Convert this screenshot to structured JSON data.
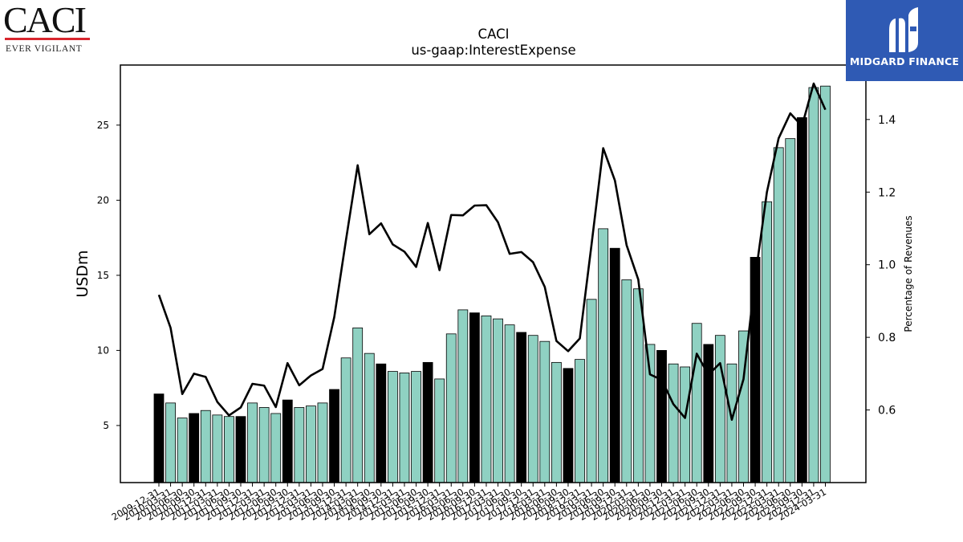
{
  "logos": {
    "caci": {
      "name": "CACI",
      "tagline": "EVER VIGILANT"
    },
    "midgard": {
      "name": "MIDGARD FINANCE"
    }
  },
  "colors": {
    "bar_default": "#8fd1c2",
    "bar_highlight": "#000000",
    "line": "#000000",
    "midgard_bg": "#2f5ab4",
    "caci_red": "#d8262e"
  },
  "chart_data": {
    "type": "bar",
    "title": "CACI",
    "subtitle": "us-gaap:InterestExpense",
    "ylabel": "USDm",
    "y2label": "Percentage of Revenues",
    "ylim": [
      1.2,
      29
    ],
    "y2lim": [
      0.4,
      1.55
    ],
    "yticks": [
      5,
      10,
      15,
      20,
      25
    ],
    "y2ticks": [
      0.6,
      0.8,
      1.0,
      1.2,
      1.4
    ],
    "categories": [
      "2009-12-31",
      "2010-03-31",
      "2010-06-30",
      "2010-09-30",
      "2010-12-31",
      "2011-03-31",
      "2011-06-30",
      "2011-09-30",
      "2011-12-31",
      "2012-03-31",
      "2012-06-30",
      "2012-09-30",
      "2012-12-31",
      "2013-03-31",
      "2013-06-30",
      "2013-09-30",
      "2013-12-31",
      "2014-03-31",
      "2014-06-30",
      "2014-09-30",
      "2014-12-31",
      "2015-03-31",
      "2015-06-30",
      "2015-09-30",
      "2015-12-31",
      "2016-03-31",
      "2016-06-30",
      "2016-09-30",
      "2016-12-31",
      "2017-03-31",
      "2017-06-30",
      "2017-09-30",
      "2017-12-31",
      "2018-03-31",
      "2018-06-30",
      "2018-09-30",
      "2018-12-31",
      "2019-03-31",
      "2019-06-30",
      "2019-09-30",
      "2019-12-31",
      "2020-03-31",
      "2020-06-30",
      "2020-09-30",
      "2020-12-31",
      "2021-03-31",
      "2021-06-30",
      "2021-09-30",
      "2021-12-31",
      "2022-03-31",
      "2022-06-30",
      "2022-09-30",
      "2022-12-31",
      "2023-03-31",
      "2023-06-30",
      "2023-09-30",
      "2023-12-31",
      "2024-03-31"
    ],
    "series": [
      {
        "values": [
          7.1,
          6.5,
          5.5,
          5.8,
          6.0,
          5.7,
          5.6,
          5.6,
          6.5,
          6.2,
          5.8,
          6.7,
          6.2,
          6.3,
          6.5,
          7.4,
          9.5,
          11.5,
          9.8,
          9.1,
          8.6,
          8.5,
          8.6,
          9.2,
          8.1,
          11.1,
          12.7,
          12.5,
          12.3,
          12.1,
          11.7,
          11.2,
          11.0,
          10.6,
          9.2,
          8.8,
          9.4,
          13.4,
          18.1,
          16.8,
          14.7,
          14.1,
          10.4,
          10.0,
          9.1,
          8.9,
          11.8,
          10.4,
          11.0,
          9.1,
          11.3,
          16.2,
          19.9,
          23.5,
          24.1,
          25.5,
          27.5,
          27.6
        ]
      },
      {
        "values": [
          0.917,
          0.826,
          0.644,
          0.7,
          0.691,
          0.622,
          0.585,
          0.607,
          0.672,
          0.667,
          0.608,
          0.729,
          0.668,
          0.695,
          0.713,
          0.856,
          1.068,
          1.274,
          1.084,
          1.114,
          1.056,
          1.036,
          0.994,
          1.115,
          0.985,
          1.137,
          1.136,
          1.163,
          1.164,
          1.117,
          1.03,
          1.035,
          1.007,
          0.939,
          0.79,
          0.762,
          0.797,
          1.055,
          1.321,
          1.232,
          1.054,
          0.959,
          0.698,
          0.683,
          0.616,
          0.578,
          0.755,
          0.697,
          0.729,
          0.573,
          0.685,
          0.964,
          1.2,
          1.348,
          1.417,
          1.382,
          1.499,
          1.427
        ]
      }
    ],
    "highlight_categories": [
      "2009-12-31",
      "2010-09-30",
      "2011-09-30",
      "2012-09-30",
      "2013-09-30",
      "2014-09-30",
      "2015-09-30",
      "2016-09-30",
      "2017-09-30",
      "2018-09-30",
      "2019-09-30",
      "2020-09-30",
      "2021-09-30",
      "2022-09-30",
      "2023-09-30"
    ],
    "grid": false,
    "legend": "none"
  }
}
